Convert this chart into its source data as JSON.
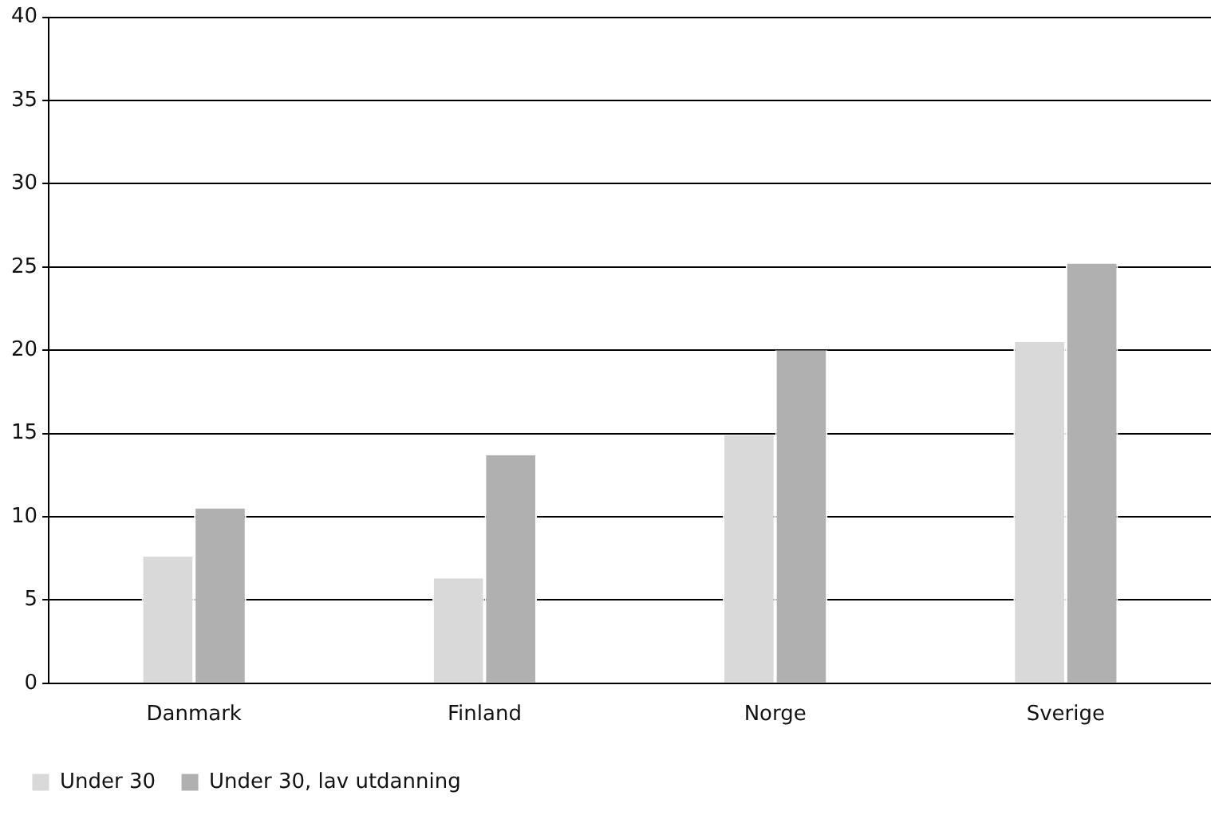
{
  "chart_data": {
    "type": "bar",
    "categories": [
      "Danmark",
      "Finland",
      "Norge",
      "Sverige"
    ],
    "series": [
      {
        "name": "Under 30",
        "color": "#d9d9d9",
        "values": [
          7.6,
          6.3,
          14.9,
          20.5
        ]
      },
      {
        "name": "Under 30, lav utdanning",
        "color": "#b0b0b0",
        "values": [
          10.5,
          13.7,
          20.0,
          25.2
        ]
      }
    ],
    "ylim": [
      0,
      40
    ],
    "yticks": [
      0,
      5,
      10,
      15,
      20,
      25,
      30,
      35,
      40
    ],
    "grid": "y",
    "legend": "bottom left"
  }
}
